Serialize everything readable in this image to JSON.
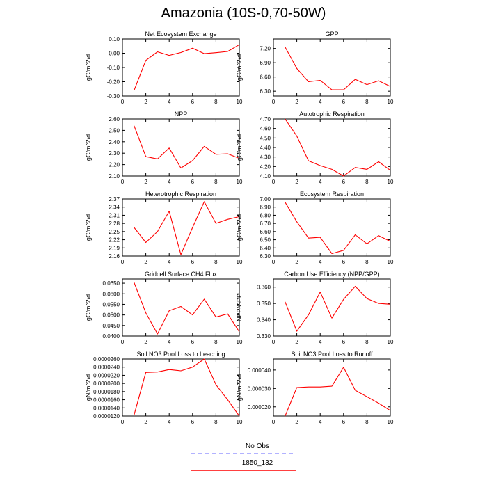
{
  "title": "Amazonia (10S-0,70-50W)",
  "legend": {
    "items": [
      {
        "label": "No Obs",
        "color": "#9999ff",
        "style": "dashed"
      },
      {
        "label": "1850_132",
        "color": "#ff0000",
        "style": "solid"
      }
    ]
  },
  "chart_data": [
    {
      "type": "line",
      "title": "Net Ecosystem Exchange",
      "ylabel": "gC/m^2/d",
      "xlim": [
        0,
        10
      ],
      "ylim": [
        -0.3,
        0.1
      ],
      "yticks": [
        "-0.30",
        "-0.20",
        "-0.10",
        "0.00",
        "0.10"
      ],
      "ytick_values": [
        -0.3,
        -0.2,
        -0.1,
        0.0,
        0.1
      ],
      "xticks": [
        0,
        2,
        4,
        6,
        8,
        10
      ],
      "series": [
        {
          "x": [
            1,
            2,
            3,
            4,
            5,
            6,
            7,
            8,
            9,
            10
          ],
          "values": [
            -0.26,
            -0.05,
            0.01,
            -0.015,
            0.005,
            0.035,
            -0.003,
            0.004,
            0.012,
            0.06
          ]
        }
      ]
    },
    {
      "type": "line",
      "title": "GPP",
      "ylabel": "gC/m^2/d",
      "xlim": [
        0,
        10
      ],
      "ylim": [
        6.2,
        7.4
      ],
      "yticks": [
        "6.30",
        "6.60",
        "6.90",
        "7.20"
      ],
      "ytick_values": [
        6.3,
        6.6,
        6.9,
        7.2
      ],
      "xticks": [
        0,
        2,
        4,
        6,
        8,
        10
      ],
      "series": [
        {
          "x": [
            1,
            2,
            3,
            4,
            5,
            6,
            7,
            8,
            9,
            10
          ],
          "values": [
            7.23,
            6.78,
            6.5,
            6.53,
            6.33,
            6.33,
            6.55,
            6.44,
            6.52,
            6.4
          ]
        }
      ]
    },
    {
      "type": "line",
      "title": "NPP",
      "ylabel": "gC/m^2/d",
      "xlim": [
        0,
        10
      ],
      "ylim": [
        2.1,
        2.6
      ],
      "yticks": [
        "2.10",
        "2.20",
        "2.30",
        "2.40",
        "2.50",
        "2.60"
      ],
      "ytick_values": [
        2.1,
        2.2,
        2.3,
        2.4,
        2.5,
        2.6
      ],
      "xticks": [
        0,
        2,
        4,
        6,
        8,
        10
      ],
      "series": [
        {
          "x": [
            1,
            2,
            3,
            4,
            5,
            6,
            7,
            8,
            9,
            10
          ],
          "values": [
            2.54,
            2.27,
            2.25,
            2.345,
            2.17,
            2.235,
            2.36,
            2.29,
            2.295,
            2.255
          ]
        }
      ]
    },
    {
      "type": "line",
      "title": "Autotrophic Respiration",
      "ylabel": "gC/m^2/d",
      "xlim": [
        0,
        10
      ],
      "ylim": [
        4.1,
        4.7
      ],
      "yticks": [
        "4.10",
        "4.20",
        "4.30",
        "4.40",
        "4.50",
        "4.60",
        "4.70"
      ],
      "ytick_values": [
        4.1,
        4.2,
        4.3,
        4.4,
        4.5,
        4.6,
        4.7
      ],
      "xticks": [
        0,
        2,
        4,
        6,
        8,
        10
      ],
      "series": [
        {
          "x": [
            1,
            2,
            3,
            4,
            5,
            6,
            7,
            8,
            9,
            10
          ],
          "values": [
            4.7,
            4.52,
            4.26,
            4.21,
            4.17,
            4.1,
            4.19,
            4.17,
            4.25,
            4.16
          ]
        }
      ]
    },
    {
      "type": "line",
      "title": "Heterotrophic Respiration",
      "ylabel": "gC/m^2/d",
      "xlim": [
        0,
        10
      ],
      "ylim": [
        2.16,
        2.37
      ],
      "yticks": [
        "2.16",
        "2.19",
        "2.22",
        "2.25",
        "2.28",
        "2.31",
        "2.34",
        "2.37"
      ],
      "ytick_values": [
        2.16,
        2.19,
        2.22,
        2.25,
        2.28,
        2.31,
        2.34,
        2.37
      ],
      "xticks": [
        0,
        2,
        4,
        6,
        8,
        10
      ],
      "series": [
        {
          "x": [
            1,
            2,
            3,
            4,
            5,
            6,
            7,
            8,
            9,
            10
          ],
          "values": [
            2.265,
            2.21,
            2.25,
            2.325,
            2.165,
            2.265,
            2.36,
            2.28,
            2.295,
            2.305
          ]
        }
      ]
    },
    {
      "type": "line",
      "title": "Ecosystem Respiration",
      "ylabel": "gC/m^2/d",
      "xlim": [
        0,
        10
      ],
      "ylim": [
        6.3,
        7.0
      ],
      "yticks": [
        "6.30",
        "6.40",
        "6.50",
        "6.60",
        "6.70",
        "6.80",
        "6.90",
        "7.00"
      ],
      "ytick_values": [
        6.3,
        6.4,
        6.5,
        6.6,
        6.7,
        6.8,
        6.9,
        7.0
      ],
      "xticks": [
        0,
        2,
        4,
        6,
        8,
        10
      ],
      "series": [
        {
          "x": [
            1,
            2,
            3,
            4,
            5,
            6,
            7,
            8,
            9,
            10
          ],
          "values": [
            6.96,
            6.72,
            6.52,
            6.53,
            6.33,
            6.37,
            6.56,
            6.45,
            6.55,
            6.48
          ]
        }
      ]
    },
    {
      "type": "line",
      "title": "Gridcell Surface CH4 Flux",
      "ylabel": "gC/m^2/d",
      "xlim": [
        0,
        10
      ],
      "ylim": [
        0.04,
        0.067
      ],
      "yticks": [
        "0.0400",
        "0.0450",
        "0.0500",
        "0.0550",
        "0.0600",
        "0.0650"
      ],
      "ytick_values": [
        0.04,
        0.045,
        0.05,
        0.055,
        0.06,
        0.065
      ],
      "xticks": [
        0,
        2,
        4,
        6,
        8,
        10
      ],
      "series": [
        {
          "x": [
            1,
            2,
            3,
            4,
            5,
            6,
            7,
            8,
            9,
            10
          ],
          "values": [
            0.0653,
            0.051,
            0.041,
            0.052,
            0.054,
            0.05,
            0.0575,
            0.049,
            0.0505,
            0.042
          ]
        }
      ]
    },
    {
      "type": "line",
      "title": "Carbon Use Efficiency (NPP/GPP)",
      "ylabel": "NPP/GPP",
      "xlim": [
        0,
        10
      ],
      "ylim": [
        0.33,
        0.365
      ],
      "yticks": [
        "0.330",
        "0.340",
        "0.350",
        "0.360"
      ],
      "ytick_values": [
        0.33,
        0.34,
        0.35,
        0.36
      ],
      "xticks": [
        0,
        2,
        4,
        6,
        8,
        10
      ],
      "series": [
        {
          "x": [
            1,
            2,
            3,
            4,
            5,
            6,
            7,
            8,
            9,
            10
          ],
          "values": [
            0.351,
            0.333,
            0.343,
            0.357,
            0.341,
            0.3525,
            0.3605,
            0.353,
            0.35,
            0.3495
          ]
        }
      ]
    },
    {
      "type": "line",
      "title": "Soil NO3 Pool Loss to Leaching",
      "ylabel": "gN/m^2/d",
      "xlim": [
        0,
        10
      ],
      "ylim": [
        1.2e-05,
        2.6e-05
      ],
      "yticks": [
        "0.0000120",
        "0.0000140",
        "0.0000160",
        "0.0000180",
        "0.0000200",
        "0.0000220",
        "0.0000240",
        "0.0000260"
      ],
      "ytick_values": [
        1.2e-05,
        1.4e-05,
        1.6e-05,
        1.8e-05,
        2e-05,
        2.2e-05,
        2.4e-05,
        2.6e-05
      ],
      "xticks": [
        0,
        2,
        4,
        6,
        8,
        10
      ],
      "series": [
        {
          "x": [
            1,
            2,
            3,
            4,
            5,
            6,
            7,
            8,
            9,
            10
          ],
          "values": [
            1.23e-05,
            2.27e-05,
            2.28e-05,
            2.34e-05,
            2.31e-05,
            2.4e-05,
            2.6e-05,
            1.97e-05,
            1.6e-05,
            1.2e-05
          ]
        }
      ]
    },
    {
      "type": "line",
      "title": "Soil NO3 Pool Loss to Runoff",
      "ylabel": "gN/m^2/d",
      "xlim": [
        0,
        10
      ],
      "ylim": [
        1.5e-05,
        4.6e-05
      ],
      "yticks": [
        "0.000020",
        "0.000030",
        "0.000040"
      ],
      "ytick_values": [
        2e-05,
        3e-05,
        4e-05
      ],
      "xticks": [
        0,
        2,
        4,
        6,
        8,
        10
      ],
      "series": [
        {
          "x": [
            1,
            2,
            3,
            4,
            5,
            6,
            7,
            8,
            9,
            10
          ],
          "values": [
            1.5e-05,
            3.05e-05,
            3.08e-05,
            3.08e-05,
            3.12e-05,
            4.15e-05,
            2.9e-05,
            2.55e-05,
            2.2e-05,
            1.8e-05
          ]
        }
      ]
    }
  ]
}
